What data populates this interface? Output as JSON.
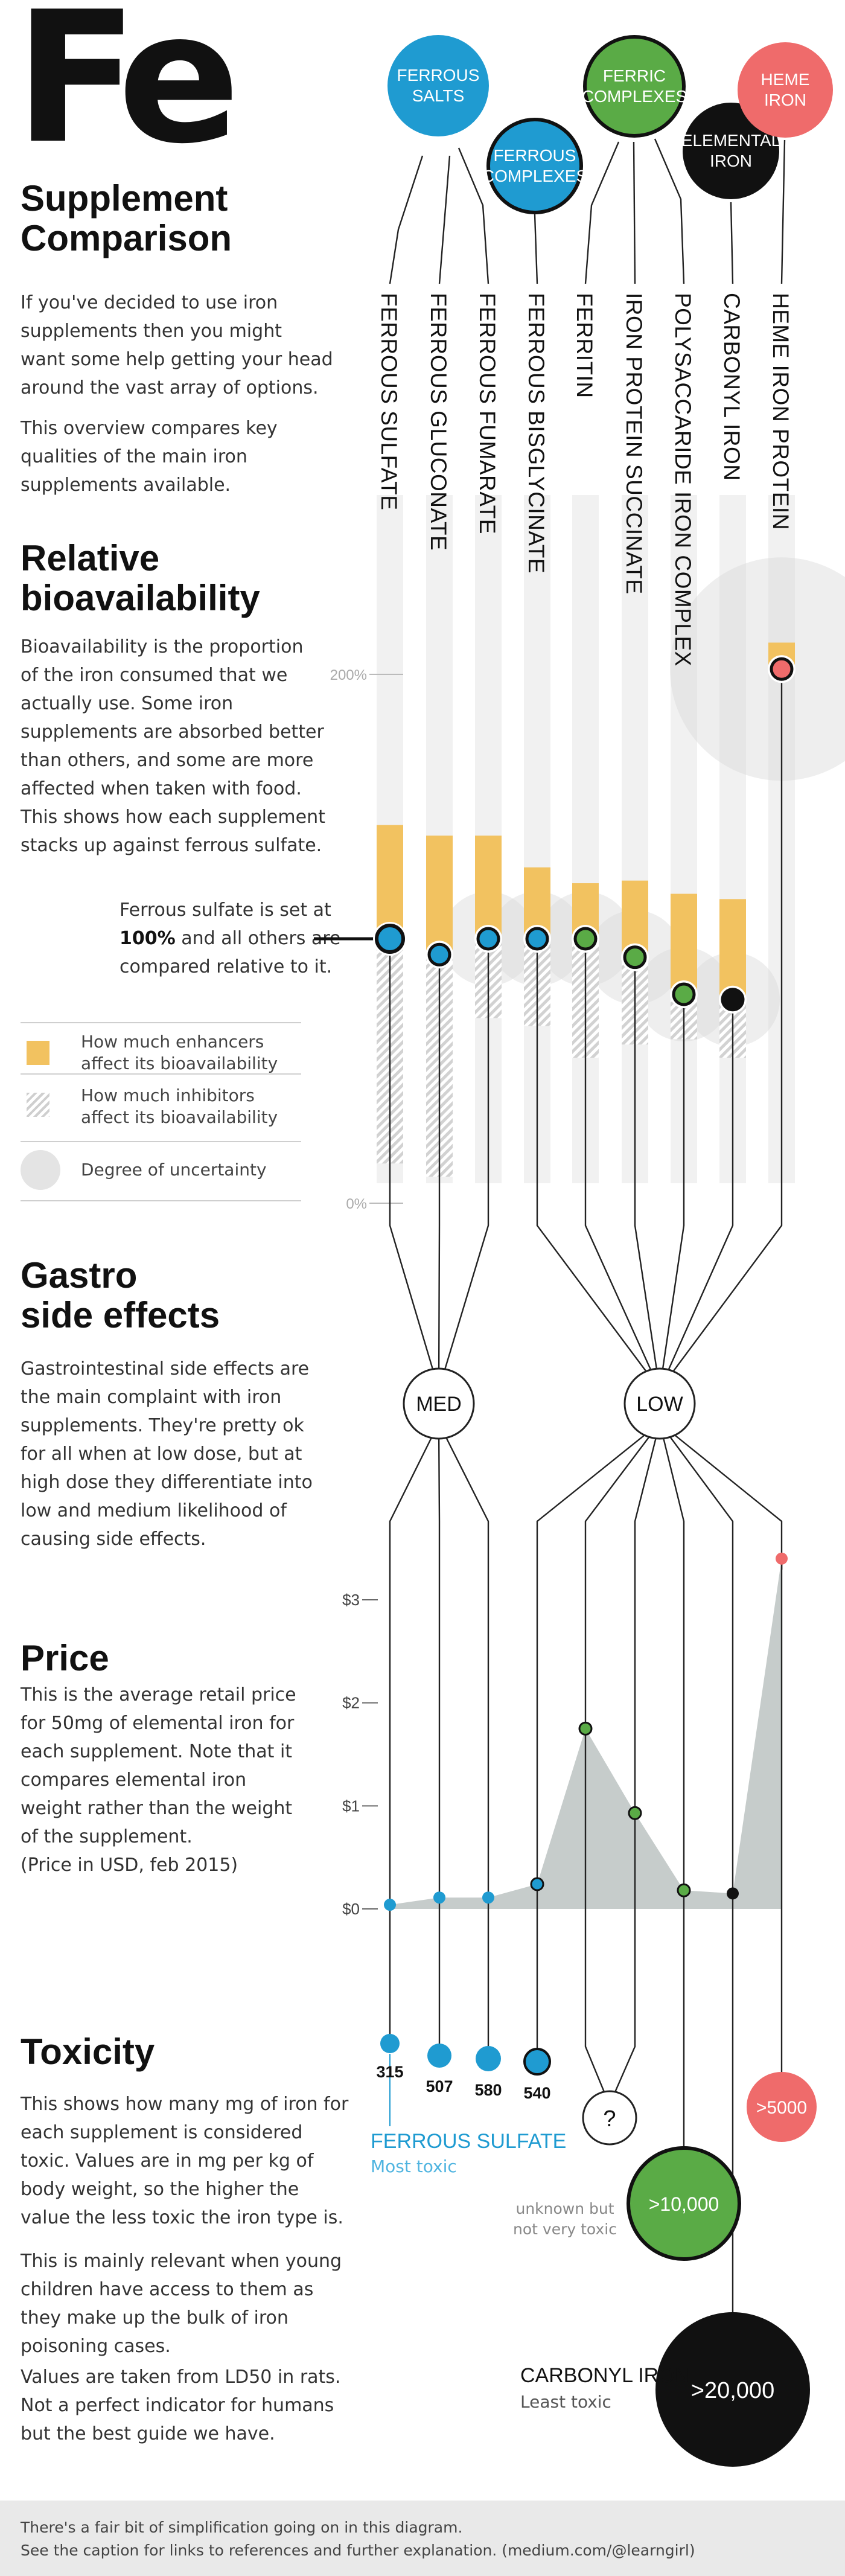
{
  "header": {
    "symbol": "Fe",
    "title_line1": "Supplement",
    "title_line2": "Comparison",
    "intro_p1": [
      "If you've decided to use iron",
      "supplements then you might",
      "want some help getting your head",
      "around the vast array of options."
    ],
    "intro_p2": [
      "This overview compares key",
      "qualities of the main iron",
      "supplements available."
    ]
  },
  "groups": [
    {
      "label_lines": [
        "FERROUS",
        "SALTS"
      ],
      "color": "#1f9bd1"
    },
    {
      "label_lines": [
        "FERROUS",
        "COMPLEXES"
      ],
      "color": "#1f9bd1"
    },
    {
      "label_lines": [
        "FERRIC",
        "COMPLEXES"
      ],
      "color": "#5aab46"
    },
    {
      "label_lines": [
        "ELEMENTAL",
        "IRON"
      ],
      "color": "#111111"
    },
    {
      "label_lines": [
        "HEME",
        "IRON"
      ],
      "color": "#ef6b6b"
    }
  ],
  "supplements": [
    "FERROUS SULFATE",
    "FERROUS GLUCONATE",
    "FERROUS FUMARATE",
    "FERROUS BISGLYCINATE",
    "FERRITIN",
    "IRON PROTEIN SUCCINATE",
    "POLYSACCARIDE IRON COMPLEX",
    "CARBONYL IRON",
    "HEME IRON PROTEIN"
  ],
  "bioavailability": {
    "title_line1": "Relative",
    "title_line2": "bioavailability",
    "text": [
      "Bioavailability is the proportion",
      "of the iron consumed that we",
      "actually use. Some iron",
      "supplements are absorbed better",
      "than others, and some are more",
      "affected when taken with food.",
      "This shows how each supplement",
      "stacks up against ferrous sulfate."
    ],
    "note_line1": "Ferrous sulfate is set at",
    "note_bold": "100%",
    "note_line2_rest": " and all others are",
    "note_line3": "compared relative to it.",
    "legend": [
      {
        "lines": [
          "How much enhancers",
          "affect its bioavailability"
        ]
      },
      {
        "lines": [
          "How much inhibitors",
          "affect its bioavailability"
        ]
      },
      {
        "lines": [
          "Degree of uncertainty"
        ]
      }
    ],
    "axis_labels": [
      "200%",
      "0%"
    ],
    "colors": {
      "enhancer": "#f2c260",
      "inhibitor": "#cfcfcf",
      "uncertainty": "#e4e4e4"
    }
  },
  "gastro": {
    "title_line1": "Gastro",
    "title_line2": "side effects",
    "text": [
      "Gastrointestinal side effects are",
      "the main complaint with iron",
      "supplements. They're pretty ok",
      "for all when at low dose, but at",
      "high dose they differentiate into",
      "low and medium likelihood of",
      "causing side effects."
    ],
    "med_label": "MED",
    "low_label": "LOW"
  },
  "price": {
    "title": "Price",
    "text": [
      "This is the average retail price",
      "for 50mg of elemental iron for",
      "each supplement. Note that it",
      "compares elemental iron",
      "weight rather than the weight",
      "of the supplement.",
      "(Price in USD, feb 2015)"
    ],
    "axis_labels": [
      "$3",
      "$2",
      "$1",
      "$0"
    ]
  },
  "toxicity": {
    "title": "Toxicity",
    "p1": [
      "This shows how many mg of iron for",
      "each supplement is considered",
      "toxic. Values are in mg per kg of",
      "body weight, so the higher the",
      "value the less toxic the iron type is."
    ],
    "p2": [
      "This is mainly relevant when young",
      "children have access to them as",
      "they make up the bulk of iron",
      "poisoning cases."
    ],
    "p3": [
      "Values are taken from LD50 in rats.",
      "Not a perfect indicator for humans",
      "but the best guide we have."
    ],
    "value_labels": [
      "315",
      "507",
      "580",
      "540"
    ],
    "unknown_symbol": "?",
    "unknown_note": [
      "unknown but",
      "not very toxic"
    ],
    "ferric_value": ">10,000",
    "carbonyl_value": ">20,000",
    "heme_value": ">5000",
    "most_toxic_name": "FERROUS SULFATE",
    "most_toxic_label": "Most toxic",
    "least_toxic_name": "CARBONYL IRON",
    "least_toxic_label": "Least toxic"
  },
  "footer": {
    "line1": "There's a fair bit of simplification going on in this diagram.",
    "line2": "See the caption for links to references and further explanation. (medium.com/@learngirl)"
  },
  "chart_data": [
    {
      "type": "bar",
      "title": "Relative bioavailability",
      "categories": [
        "Ferrous sulfate",
        "Ferrous gluconate",
        "Ferrous fumarate",
        "Ferrous bisglycinate",
        "Ferritin",
        "Iron protein succinate",
        "Polysaccaride iron complex",
        "Carbonyl iron",
        "Heme iron protein"
      ],
      "unit": "% relative to ferrous sulfate",
      "ylim": [
        0,
        200
      ],
      "baseline": [
        100,
        94,
        100,
        100,
        100,
        93,
        79,
        77,
        202
      ],
      "with_enhancers": [
        143,
        139,
        139,
        127,
        121,
        122,
        117,
        115,
        212
      ],
      "with_inhibitors": [
        15,
        10,
        70,
        67,
        55,
        60,
        62,
        55,
        202
      ],
      "uncertainty": [
        "low",
        "low",
        "medium",
        "medium",
        "medium",
        "medium",
        "medium",
        "medium",
        "high"
      ]
    },
    {
      "type": "table",
      "title": "Gastro side effects",
      "categories": [
        "Ferrous sulfate",
        "Ferrous gluconate",
        "Ferrous fumarate",
        "Ferrous bisglycinate",
        "Ferritin",
        "Iron protein succinate",
        "Polysaccaride iron complex",
        "Carbonyl iron",
        "Heme iron protein"
      ],
      "values": [
        "MED",
        "MED",
        "MED",
        "LOW",
        "LOW",
        "LOW",
        "LOW",
        "LOW",
        "LOW"
      ]
    },
    {
      "type": "area",
      "title": "Price",
      "ylabel": "Price in USD, feb 2015",
      "categories": [
        "Ferrous sulfate",
        "Ferrous gluconate",
        "Ferrous fumarate",
        "Ferrous bisglycinate",
        "Ferritin",
        "Iron protein succinate",
        "Polysaccaride iron complex",
        "Carbonyl iron",
        "Heme iron protein"
      ],
      "values": [
        0.04,
        0.11,
        0.11,
        0.24,
        1.75,
        0.93,
        0.18,
        0.15,
        3.4
      ],
      "ylim": [
        0,
        3
      ]
    },
    {
      "type": "scatter",
      "title": "Toxicity",
      "unit": "mg per kg of body weight (LD50 in rats)",
      "categories": [
        "Ferrous sulfate",
        "Ferrous gluconate",
        "Ferrous fumarate",
        "Ferrous bisglycinate",
        "Ferritin",
        "Iron protein succinate",
        "Polysaccaride iron complex",
        "Carbonyl iron",
        "Heme iron protein"
      ],
      "values": [
        "315",
        "507",
        "580",
        "540",
        "?",
        "?",
        ">10,000",
        ">20,000",
        ">5000"
      ]
    }
  ]
}
